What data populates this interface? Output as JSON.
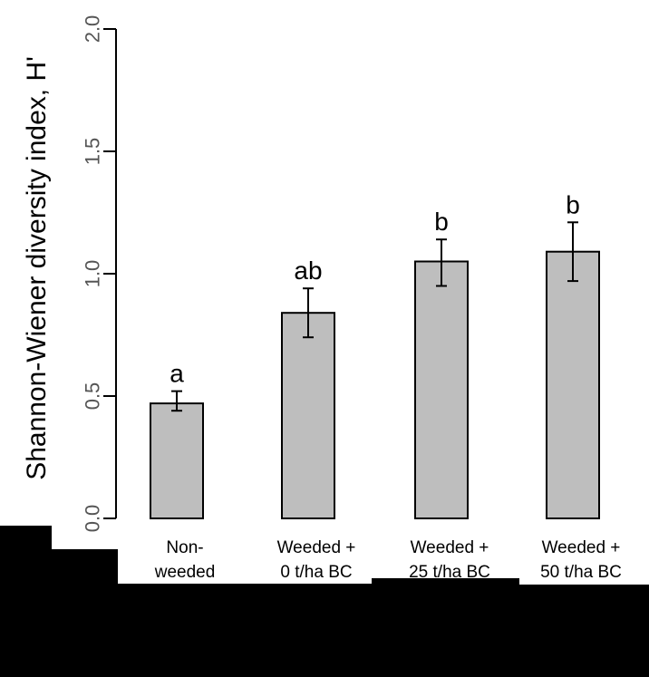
{
  "colors": {
    "background": "#000000",
    "panel": "#ffffff",
    "bar_fill": "#bebebe",
    "bar_stroke": "#000000"
  },
  "chart_data": {
    "type": "bar",
    "ylabel": "Shannon-Wiener diversity index, H'",
    "xlabel": "",
    "ylim": [
      0,
      2.0
    ],
    "yticks": [
      "0.0",
      "0.5",
      "1.0",
      "1.5",
      "2.0"
    ],
    "categories": [
      [
        "Non-",
        "weeded"
      ],
      [
        "Weeded +",
        "0 t/ha BC"
      ],
      [
        "Weeded +",
        "25 t/ha BC"
      ],
      [
        "Weeded +",
        "50 t/ha BC"
      ]
    ],
    "values": [
      0.47,
      0.84,
      1.05,
      1.09
    ],
    "error_low": [
      0.44,
      0.74,
      0.95,
      0.97
    ],
    "error_high": [
      0.52,
      0.94,
      1.14,
      1.21
    ],
    "significance": [
      "a",
      "ab",
      "b",
      "b"
    ],
    "grid": false
  }
}
